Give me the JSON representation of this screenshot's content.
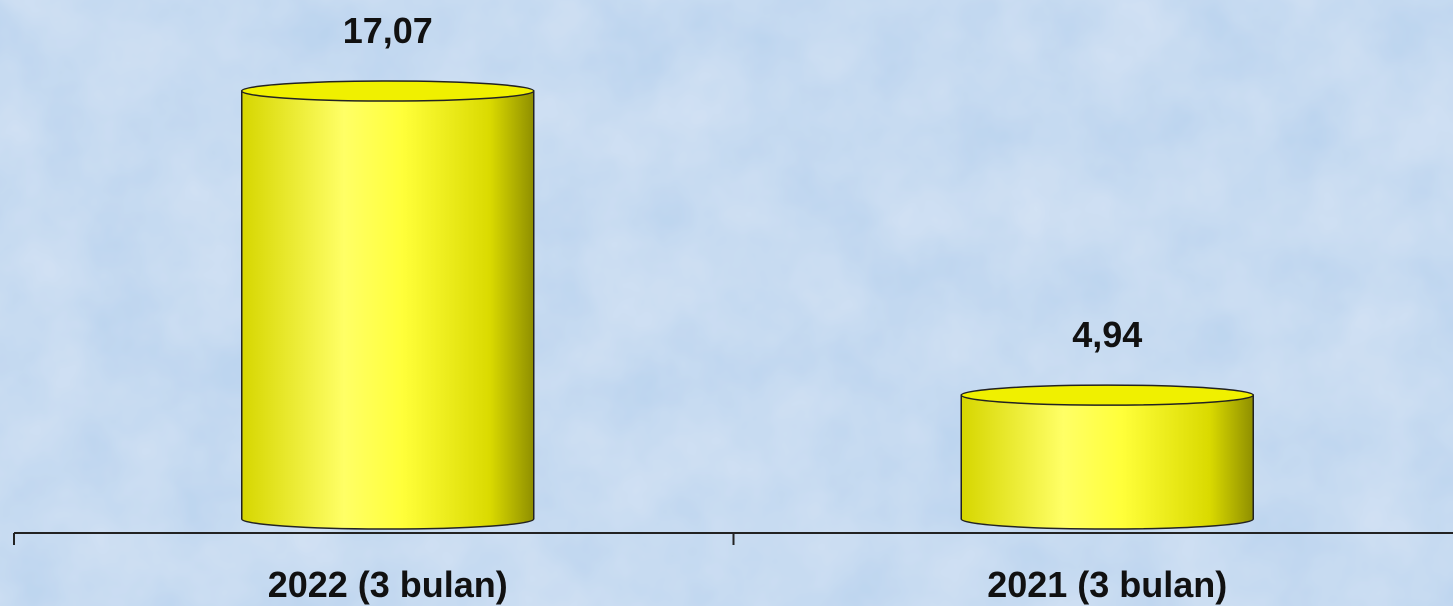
{
  "chart_data": {
    "type": "bar",
    "style": "3d-cylinder",
    "categories": [
      "2022 (3 bulan)",
      "2021 (3 bulan)"
    ],
    "values": [
      17.07,
      4.94
    ],
    "value_labels": [
      "17,07",
      "4,94"
    ],
    "title": "",
    "xlabel": "",
    "ylabel": "",
    "ylim": [
      0,
      17.07
    ],
    "grid": false,
    "legend": "none"
  },
  "colors": {
    "background": "#b8d2ee",
    "bar_light": "#ffff7a",
    "bar_mid": "#f4f400",
    "bar_dark": "#8f8f00",
    "bar_top": "#f0f000",
    "axis": "#222222"
  }
}
